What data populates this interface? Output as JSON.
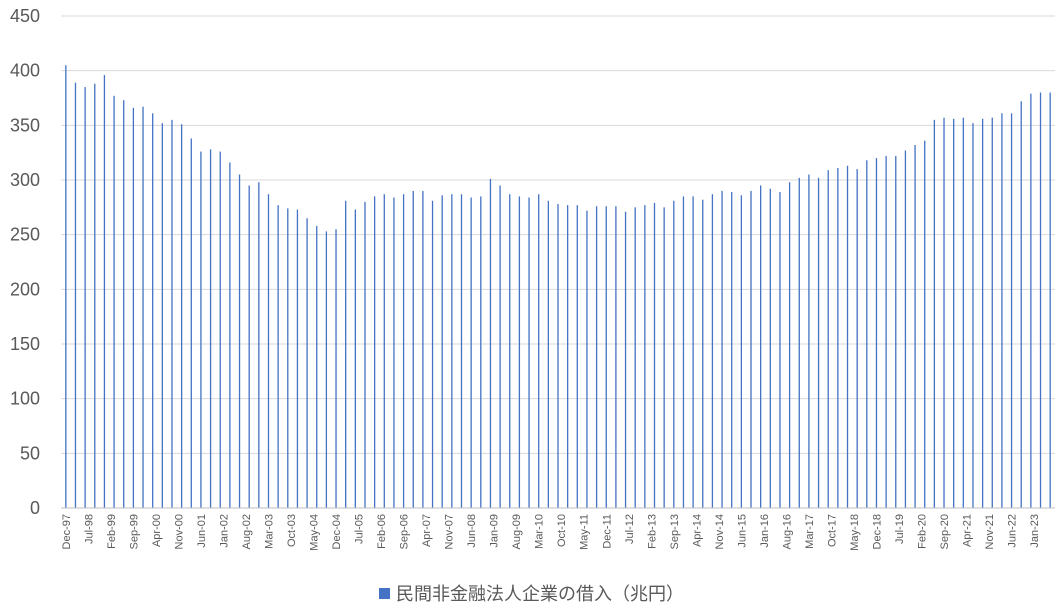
{
  "chart_data": {
    "type": "bar",
    "title": "",
    "xlabel": "",
    "ylabel": "",
    "ylim": [
      0,
      450
    ],
    "y_ticks": [
      "0",
      "50",
      "100",
      "150",
      "200",
      "250",
      "300",
      "350",
      "400",
      "450"
    ],
    "grid": true,
    "legend_position": "bottom",
    "series_color": "#4472C4",
    "x_tick_labels": [
      "Dec-97",
      "Jul-98",
      "Feb-99",
      "Sep-99",
      "Apr-00",
      "Nov-00",
      "Jun-01",
      "Jan-02",
      "Aug-02",
      "Mar-03",
      "Oct-03",
      "May-04",
      "Dec-04",
      "Jul-05",
      "Feb-06",
      "Sep-06",
      "Apr-07",
      "Nov-07",
      "Jun-08",
      "Jan-09",
      "Aug-09",
      "Mar-10",
      "Oct-10",
      "May-11",
      "Dec-11",
      "Jul-12",
      "Feb-13",
      "Sep-13",
      "Apr-14",
      "Nov-14",
      "Jun-15",
      "Jan-16",
      "Aug-16",
      "Mar-17",
      "Oct-17",
      "May-18",
      "Dec-18",
      "Jul-19",
      "Feb-20",
      "Sep-20",
      "Apr-21",
      "Nov-21",
      "Jun-22",
      "Jan-23"
    ],
    "series": [
      {
        "name": "民間非金融法人企業の借入（兆円）",
        "values": [
          405,
          389,
          385,
          388,
          396,
          377,
          373,
          366,
          367,
          361,
          352,
          355,
          351,
          338,
          326,
          328,
          326,
          316,
          305,
          295,
          298,
          287,
          277,
          274,
          273,
          265,
          258,
          253,
          255,
          281,
          273,
          280,
          285,
          287,
          284,
          287,
          290,
          290,
          281,
          286,
          287,
          287,
          284,
          285,
          301,
          295,
          287,
          285,
          284,
          287,
          281,
          278,
          277,
          277,
          272,
          276,
          276,
          276,
          271,
          275,
          277,
          279,
          275,
          281,
          285,
          285,
          282,
          287,
          290,
          289,
          286,
          290,
          295,
          292,
          289,
          298,
          302,
          305,
          302,
          309,
          311,
          313,
          310,
          318,
          320,
          322,
          322,
          327,
          332,
          336,
          355,
          357,
          356,
          357,
          352,
          356,
          357,
          361,
          361,
          372,
          379,
          380,
          380
        ]
      }
    ]
  }
}
